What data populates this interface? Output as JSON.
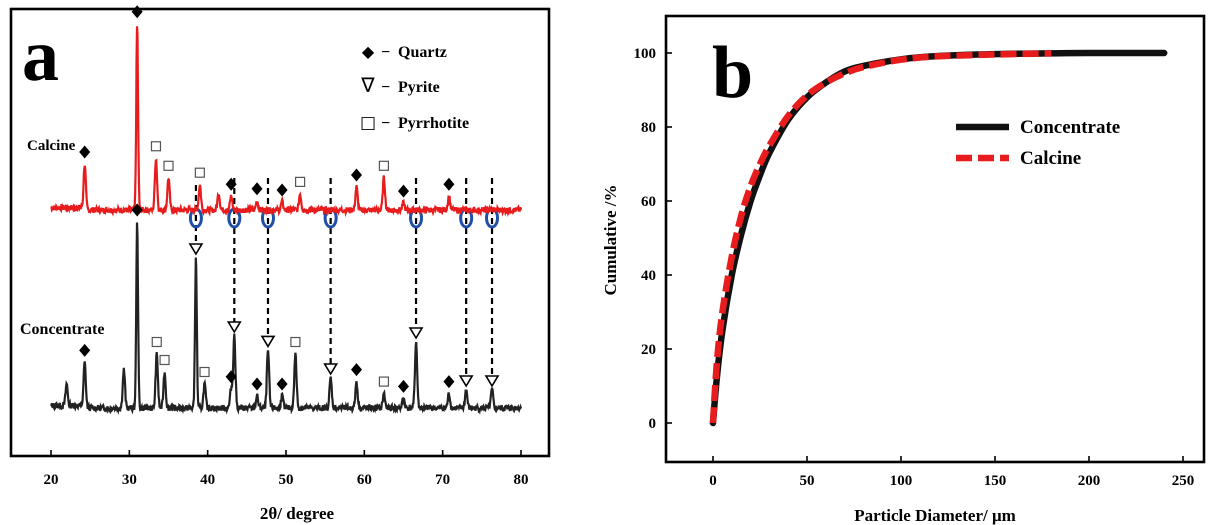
{
  "chart_data": [
    {
      "panel": "a",
      "type": "line",
      "xlabel": "2θ/ degree",
      "ylabel": "",
      "xlim": [
        20,
        80
      ],
      "xticks": [
        20,
        30,
        40,
        50,
        60,
        70,
        80
      ],
      "y_ticks_shown": false,
      "grid": false,
      "legend_placement": "top-right",
      "legend": [
        {
          "symbol": "◆",
          "dash": "−",
          "label": "Quartz"
        },
        {
          "symbol": "∇",
          "dash": "−",
          "label": "Pyrite"
        },
        {
          "symbol": "□",
          "dash": "−",
          "label": "Pyrrhotite"
        }
      ],
      "series": [
        {
          "name": "Calcine",
          "color": "#e81c1c",
          "peaks": [
            {
              "x": 24.3,
              "h": 0.4,
              "phase": "quartz"
            },
            {
              "x": 31.0,
              "h": 1.62,
              "phase": "quartz"
            },
            {
              "x": 33.4,
              "h": 0.45,
              "phase": "pyrrhotite"
            },
            {
              "x": 35.0,
              "h": 0.28,
              "phase": "pyrrhotite"
            },
            {
              "x": 39.0,
              "h": 0.22,
              "phase": "pyrrhotite"
            },
            {
              "x": 41.4,
              "h": 0.15,
              "phase": "none"
            },
            {
              "x": 43.0,
              "h": 0.12,
              "phase": "quartz"
            },
            {
              "x": 46.3,
              "h": 0.08,
              "phase": "quartz"
            },
            {
              "x": 49.5,
              "h": 0.07,
              "phase": "quartz"
            },
            {
              "x": 51.8,
              "h": 0.14,
              "phase": "pyrrhotite"
            },
            {
              "x": 59.0,
              "h": 0.2,
              "phase": "quartz"
            },
            {
              "x": 62.5,
              "h": 0.28,
              "phase": "pyrrhotite"
            },
            {
              "x": 65.0,
              "h": 0.06,
              "phase": "quartz"
            },
            {
              "x": 70.8,
              "h": 0.12,
              "phase": "quartz"
            }
          ],
          "removed_pyrite_marks": [
            38.5,
            43.4,
            47.7,
            55.7,
            66.6,
            73.0,
            76.3
          ]
        },
        {
          "name": "Concentrate",
          "color": "#222222",
          "peaks": [
            {
              "x": 22.0,
              "h": 0.18,
              "phase": "none"
            },
            {
              "x": 24.3,
              "h": 0.38,
              "phase": "quartz"
            },
            {
              "x": 29.3,
              "h": 0.32,
              "phase": "none"
            },
            {
              "x": 31.0,
              "h": 1.55,
              "phase": "quartz"
            },
            {
              "x": 33.5,
              "h": 0.45,
              "phase": "pyrrhotite"
            },
            {
              "x": 34.5,
              "h": 0.3,
              "phase": "pyrrhotite"
            },
            {
              "x": 38.5,
              "h": 1.25,
              "phase": "pyrite"
            },
            {
              "x": 39.6,
              "h": 0.2,
              "phase": "pyrrhotite"
            },
            {
              "x": 43.0,
              "h": 0.16,
              "phase": "quartz"
            },
            {
              "x": 43.4,
              "h": 0.6,
              "phase": "pyrite"
            },
            {
              "x": 46.3,
              "h": 0.1,
              "phase": "quartz"
            },
            {
              "x": 47.7,
              "h": 0.48,
              "phase": "pyrite"
            },
            {
              "x": 49.5,
              "h": 0.1,
              "phase": "quartz"
            },
            {
              "x": 51.2,
              "h": 0.45,
              "phase": "pyrrhotite"
            },
            {
              "x": 55.7,
              "h": 0.25,
              "phase": "pyrite"
            },
            {
              "x": 59.0,
              "h": 0.22,
              "phase": "quartz"
            },
            {
              "x": 62.5,
              "h": 0.12,
              "phase": "pyrrhotite"
            },
            {
              "x": 65.0,
              "h": 0.08,
              "phase": "quartz"
            },
            {
              "x": 66.6,
              "h": 0.55,
              "phase": "pyrite"
            },
            {
              "x": 70.8,
              "h": 0.12,
              "phase": "quartz"
            },
            {
              "x": 73.0,
              "h": 0.15,
              "phase": "pyrite"
            },
            {
              "x": 76.3,
              "h": 0.15,
              "phase": "pyrite"
            }
          ]
        }
      ],
      "pyrite_reference_lines": [
        38.5,
        43.4,
        47.7,
        55.7,
        66.6,
        73.0,
        76.3
      ]
    },
    {
      "panel": "b",
      "type": "line",
      "xlabel": "Particle Diameter/  μm",
      "ylabel": "Cumulative /%",
      "xlim": [
        -12,
        260
      ],
      "ylim": [
        -10,
        110
      ],
      "xticks": [
        0,
        50,
        100,
        150,
        200,
        250
      ],
      "yticks": [
        0,
        20,
        40,
        60,
        80,
        100
      ],
      "grid": false,
      "legend_placement": "top-right",
      "series": [
        {
          "name": "Concentrate",
          "color": "#111111",
          "style": "solid",
          "x": [
            0,
            2,
            5,
            10,
            15,
            20,
            25,
            30,
            40,
            50,
            60,
            70,
            80,
            100,
            120,
            150,
            180,
            200,
            240
          ],
          "y": [
            0,
            12,
            25,
            40,
            51,
            60,
            67,
            73,
            82,
            88,
            92,
            95,
            96.5,
            98.3,
            99.2,
            99.7,
            99.9,
            100,
            100
          ]
        },
        {
          "name": "Calcine",
          "color": "#e81c1c",
          "style": "dashed",
          "x": [
            0,
            2,
            5,
            10,
            15,
            20,
            25,
            30,
            40,
            50,
            60,
            70,
            80,
            100,
            120,
            150,
            180
          ],
          "y": [
            0,
            16,
            30,
            45,
            56,
            64,
            70,
            75,
            83,
            88.5,
            92,
            94.5,
            96.2,
            98.2,
            99.1,
            99.6,
            99.9
          ]
        }
      ]
    }
  ],
  "labels": {
    "panel_a": "a",
    "panel_b": "b",
    "calcine_series_label": "Calcine",
    "concentrate_series_label": "Concentrate"
  },
  "colors": {
    "calcine_red": "#e81c1c",
    "concentrate_black": "#222222",
    "removed_marker_blue": "#1f4fa8"
  }
}
